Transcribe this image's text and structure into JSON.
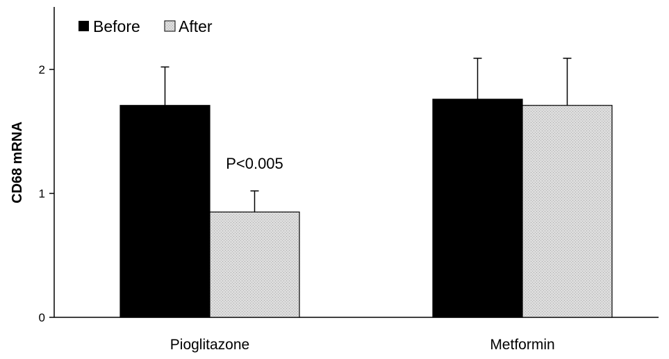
{
  "chart_data": {
    "type": "bar",
    "title": "",
    "xlabel": "",
    "ylabel": "CD68 mRNA",
    "ylim": [
      0,
      2.5
    ],
    "yticks": [
      0,
      1,
      2
    ],
    "categories": [
      "Pioglitazone",
      "Metformin"
    ],
    "series": [
      {
        "name": "Before",
        "values": [
          1.71,
          1.76
        ],
        "errors": [
          0.31,
          0.33
        ]
      },
      {
        "name": "After",
        "values": [
          0.85,
          1.71
        ],
        "errors": [
          0.17,
          0.38
        ]
      }
    ],
    "annotations": [
      {
        "text": "P<0.005",
        "category": "Pioglitazone"
      }
    ],
    "legend_position": "top-left",
    "grid": false,
    "colors": {
      "Before": "#000000",
      "After": "#d6d6d6"
    }
  }
}
